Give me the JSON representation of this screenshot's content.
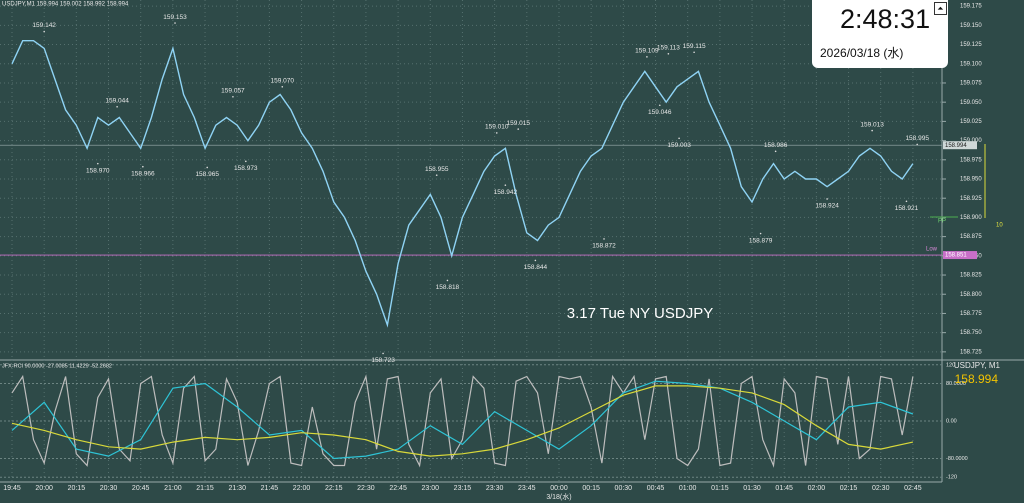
{
  "header": {
    "symbol_info": "USDJPY,M1  158.994 159.002 158.992 158.994"
  },
  "clock": {
    "time": "2:48:31",
    "date": "2026/03/18 (水)"
  },
  "chart_data": [
    {
      "type": "line",
      "title": "3.17 Tue NY USDJPY",
      "color": "#8fd3f4",
      "grid": true,
      "x": [
        "19:45",
        "19:50",
        "19:55",
        "20:00",
        "20:05",
        "20:10",
        "20:15",
        "20:20",
        "20:25",
        "20:30",
        "20:35",
        "20:40",
        "20:45",
        "20:50",
        "20:55",
        "21:00",
        "21:05",
        "21:10",
        "21:15",
        "21:20",
        "21:25",
        "21:30",
        "21:35",
        "21:40",
        "21:45",
        "21:50",
        "21:55",
        "22:00",
        "22:05",
        "22:10",
        "22:15",
        "22:20",
        "22:25",
        "22:30",
        "22:35",
        "22:40",
        "22:45",
        "22:50",
        "22:55",
        "23:00",
        "23:05",
        "23:10",
        "23:15",
        "23:20",
        "23:25",
        "23:30",
        "23:35",
        "23:40",
        "23:45",
        "23:50",
        "23:55",
        "00:00",
        "00:05",
        "00:10",
        "00:15",
        "00:20",
        "00:25",
        "00:30",
        "00:35",
        "00:40",
        "00:45",
        "00:50",
        "00:55",
        "01:00",
        "01:05",
        "01:10",
        "01:15",
        "01:20",
        "01:25",
        "01:30",
        "01:35",
        "01:40",
        "01:45",
        "01:50",
        "01:55",
        "02:00",
        "02:05",
        "02:10",
        "02:15",
        "02:20",
        "02:25",
        "02:30",
        "02:35",
        "02:40",
        "02:45"
      ],
      "values": [
        159.1,
        159.13,
        159.13,
        159.12,
        159.08,
        159.04,
        159.02,
        158.99,
        159.03,
        159.02,
        159.03,
        159.01,
        158.99,
        159.03,
        159.08,
        159.12,
        159.06,
        159.03,
        158.99,
        159.02,
        159.03,
        159.02,
        159.0,
        159.02,
        159.05,
        159.06,
        159.04,
        159.01,
        158.99,
        158.96,
        158.92,
        158.9,
        158.87,
        158.83,
        158.8,
        158.76,
        158.84,
        158.89,
        158.91,
        158.93,
        158.9,
        158.85,
        158.9,
        158.93,
        158.96,
        158.98,
        158.99,
        158.93,
        158.88,
        158.87,
        158.89,
        158.9,
        158.93,
        158.96,
        158.98,
        158.99,
        159.02,
        159.05,
        159.07,
        159.09,
        159.07,
        159.05,
        159.07,
        159.08,
        159.09,
        159.05,
        159.02,
        158.99,
        158.94,
        158.92,
        158.95,
        158.97,
        158.95,
        158.96,
        158.95,
        158.95,
        158.94,
        158.95,
        158.96,
        158.98,
        158.99,
        158.98,
        158.96,
        158.95,
        158.97
      ],
      "ylim": [
        158.717,
        159.183
      ],
      "yticks": [
        159.175,
        {
          "value": 159.15,
          "label": "159.150"
        },
        159.125,
        {
          "value": 159.1,
          "label": "159.100"
        },
        159.075,
        {
          "value": 159.05,
          "label": "159.050"
        },
        159.025,
        {
          "value": 159,
          "label": "159.000"
        },
        158.975,
        {
          "value": 158.95,
          "label": "158.950"
        },
        158.925,
        {
          "value": 158.9,
          "label": "158.900"
        },
        158.875,
        {
          "value": 158.85,
          "label": "158.850"
        },
        158.825,
        {
          "value": 158.8,
          "label": "158.800"
        },
        158.775,
        {
          "value": 158.75,
          "label": "158.750"
        },
        158.725
      ],
      "xticks": [
        "19:45",
        "20:00",
        "20:15",
        "20:30",
        "20:45",
        "21:00",
        "21:15",
        "21:30",
        "21:45",
        "22:00",
        "22:15",
        "22:30",
        "22:45",
        "23:00",
        "23:15",
        "23:30",
        "23:45",
        "00:00",
        "00:15",
        "00:30",
        "00:45",
        "01:00",
        "01:15",
        "01:30",
        "01:45",
        "02:00",
        "02:15",
        "02:30",
        "02:45"
      ],
      "x_date_label": "3/18(水)",
      "current_price": 158.994,
      "low_line": {
        "label": "Low",
        "value": 158.851
      },
      "pp_label": "PP",
      "range_label": "10",
      "annotations": [
        {
          "x": "20:00",
          "value": 159.142
        },
        {
          "x": "20:25",
          "value": 158.97,
          "label": "158.970"
        },
        {
          "x": "20:34",
          "value": 159.044
        },
        {
          "x": "20:46",
          "value": 158.966
        },
        {
          "x": "21:01",
          "value": 159.153
        },
        {
          "x": "21:16",
          "value": 158.965
        },
        {
          "x": "21:28",
          "value": 159.057
        },
        {
          "x": "21:34",
          "value": 158.973
        },
        {
          "x": "21:51",
          "value": 159.07,
          "label": "159.070"
        },
        {
          "x": "22:38",
          "value": 158.723
        },
        {
          "x": "23:08",
          "value": 158.818
        },
        {
          "x": "23:03",
          "value": 158.955
        },
        {
          "x": "23:35",
          "value": 158.942
        },
        {
          "x": "23:31",
          "value": 159.01,
          "label": "159.010"
        },
        {
          "x": "23:41",
          "value": 159.015
        },
        {
          "x": "23:49",
          "value": 158.844
        },
        {
          "x": "00:21",
          "value": 158.872
        },
        {
          "x": "00:41",
          "value": 159.109
        },
        {
          "x": "00:47",
          "value": 159.046
        },
        {
          "x": "00:51",
          "value": 159.113
        },
        {
          "x": "00:56",
          "value": 159.003
        },
        {
          "x": "01:03",
          "value": 159.115
        },
        {
          "x": "01:34",
          "value": 158.879
        },
        {
          "x": "01:41",
          "value": 158.986
        },
        {
          "x": "02:05",
          "value": 158.924
        },
        {
          "x": "02:26",
          "value": 159.013
        },
        {
          "x": "02:42",
          "value": 158.921
        },
        {
          "x": "02:47",
          "value": 158.995
        }
      ]
    },
    {
      "type": "line",
      "title": "JFX-RCI 90.0000 -27.0085 11.4229 -52.2682",
      "symbol": "USDJPY, M1",
      "price": 158.994,
      "ylim": [
        -126,
        126
      ],
      "yticks": [
        120,
        {
          "value": 80,
          "label": "80.0000"
        },
        {
          "value": 0,
          "label": "0.00"
        },
        {
          "value": -80,
          "label": "-80.0000"
        },
        -120
      ],
      "series": [
        {
          "color": "#bdbdbd",
          "x": [
            "19:45",
            "19:50",
            "19:55",
            "20:00",
            "20:05",
            "20:10",
            "20:15",
            "20:20",
            "20:25",
            "20:30",
            "20:35",
            "20:40",
            "20:45",
            "20:50",
            "20:55",
            "21:00",
            "21:05",
            "21:10",
            "21:15",
            "21:20",
            "21:25",
            "21:30",
            "21:35",
            "21:40",
            "21:45",
            "21:50",
            "21:55",
            "22:00",
            "22:05",
            "22:10",
            "22:15",
            "22:20",
            "22:25",
            "22:30",
            "22:35",
            "22:40",
            "22:45",
            "22:50",
            "22:55",
            "23:00",
            "23:05",
            "23:10",
            "23:15",
            "23:20",
            "23:25",
            "23:30",
            "23:35",
            "23:40",
            "23:45",
            "23:50",
            "23:55",
            "00:00",
            "00:05",
            "00:10",
            "00:15",
            "00:20",
            "00:25",
            "00:30",
            "00:35",
            "00:40",
            "00:45",
            "00:50",
            "00:55",
            "01:00",
            "01:05",
            "01:10",
            "01:15",
            "01:20",
            "01:25",
            "01:30",
            "01:35",
            "01:40",
            "01:45",
            "01:50",
            "01:55",
            "02:00",
            "02:05",
            "02:10",
            "02:15",
            "02:20",
            "02:25",
            "02:30",
            "02:35",
            "02:40",
            "02:45"
          ],
          "values": [
            60,
            95,
            -40,
            -90,
            20,
            95,
            -70,
            -95,
            50,
            90,
            -60,
            -85,
            80,
            95,
            -30,
            -90,
            70,
            95,
            -85,
            -60,
            90,
            40,
            -95,
            -20,
            80,
            95,
            -90,
            -95,
            30,
            -70,
            -95,
            -95,
            40,
            95,
            -60,
            90,
            95,
            -50,
            -95,
            60,
            90,
            -80,
            -40,
            95,
            70,
            -90,
            -95,
            85,
            95,
            60,
            -70,
            95,
            90,
            95,
            30,
            -90,
            95,
            60,
            95,
            -40,
            90,
            95,
            -80,
            -95,
            -60,
            90,
            -95,
            -90,
            80,
            95,
            -40,
            -95,
            90,
            60,
            -95,
            95,
            90,
            -50,
            95,
            -80,
            -60,
            95,
            90,
            -30,
            95
          ]
        },
        {
          "color": "#2ec4d6",
          "x": [
            "19:45",
            "20:00",
            "20:15",
            "20:30",
            "20:45",
            "21:00",
            "21:15",
            "21:30",
            "21:45",
            "22:00",
            "22:15",
            "22:30",
            "22:45",
            "23:00",
            "23:15",
            "23:30",
            "23:45",
            "00:00",
            "00:15",
            "00:30",
            "00:45",
            "01:00",
            "01:15",
            "01:30",
            "01:45",
            "02:00",
            "02:15",
            "02:30",
            "02:45"
          ],
          "values": [
            -20,
            40,
            -60,
            -75,
            -40,
            70,
            80,
            30,
            -30,
            -20,
            -80,
            -75,
            -60,
            -10,
            -50,
            20,
            -20,
            -60,
            -10,
            60,
            85,
            80,
            70,
            40,
            0,
            -40,
            30,
            40,
            15
          ]
        },
        {
          "color": "#d9d93a",
          "x": [
            "19:45",
            "20:00",
            "20:15",
            "20:30",
            "20:45",
            "21:00",
            "21:15",
            "21:30",
            "21:45",
            "22:00",
            "22:15",
            "22:30",
            "22:45",
            "23:00",
            "23:15",
            "23:30",
            "23:45",
            "00:00",
            "00:15",
            "00:30",
            "00:45",
            "01:00",
            "01:15",
            "01:30",
            "01:45",
            "02:00",
            "02:15",
            "02:30",
            "02:45"
          ],
          "values": [
            -5,
            -20,
            -40,
            -55,
            -60,
            -45,
            -35,
            -40,
            -35,
            -25,
            -30,
            -40,
            -65,
            -75,
            -70,
            -60,
            -40,
            -15,
            20,
            55,
            75,
            75,
            70,
            60,
            35,
            -10,
            -50,
            -60,
            -45
          ]
        }
      ]
    }
  ]
}
